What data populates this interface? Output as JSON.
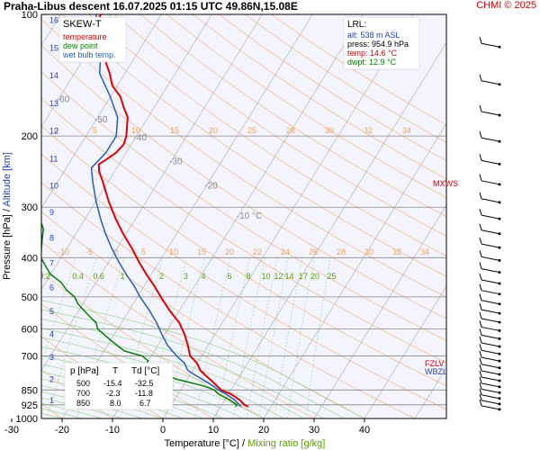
{
  "header": {
    "title": "Praha-Libus   descent   16.07.2025 01:15 UTC  49.86N,15.08E",
    "credit": "CHMI © 2025"
  },
  "legend": {
    "title": "SKEW-T",
    "items": [
      {
        "label": "temperature",
        "color": "#e00000"
      },
      {
        "label": "dew point",
        "color": "#008000"
      },
      {
        "label": "wet bulb temp.",
        "color": "#1f5fbf"
      }
    ]
  },
  "lrl": {
    "title": "LRL:",
    "alt": "alt: 538 m ASL",
    "press": "press: 954.9 hPa",
    "temp": "temp: 14.6 °C",
    "dwpt": "dwpt: 12.9 °C"
  },
  "levels_table": {
    "headers": [
      "p [hPa]",
      "T",
      "Td [°C]"
    ],
    "rows": [
      [
        "500",
        "-15.4",
        "-32.5"
      ],
      [
        "700",
        "-2.3",
        "-11.8"
      ],
      [
        "850",
        "8.0",
        "6.7"
      ]
    ]
  },
  "labels": {
    "mxws": "MXWS",
    "fzlv": "FZLV",
    "wbzl": "WBZL"
  },
  "chart_data": {
    "type": "line",
    "xlabel": "Temperature [°C]",
    "xlabel_sep": " / ",
    "xlabel2": "Mixing ratio [g/kg]",
    "ylabel": "Pressure [hPa]",
    "ylabel_sep": " / ",
    "ylabel2": "Altitude [km]",
    "xlim": [
      -38,
      50
    ],
    "ylim": [
      1000,
      100
    ],
    "x_ticks": [
      -30,
      -20,
      -10,
      0,
      10,
      20,
      30,
      40
    ],
    "pressure_ticks": [
      100,
      200,
      300,
      400,
      500,
      600,
      700,
      850,
      925,
      1000
    ],
    "altitude_ticks": [
      1,
      2,
      3,
      4,
      5,
      6,
      7,
      8,
      9,
      10,
      11,
      12,
      13,
      14,
      15,
      16
    ],
    "isotherm_labels": [
      {
        "t": -80,
        "p": 110,
        "text": "-80 °C"
      },
      {
        "t": -70,
        "p": 140,
        "text": "-70"
      },
      {
        "t": -60,
        "p": 165,
        "text": "-60"
      },
      {
        "t": -50,
        "p": 185,
        "text": "-50"
      },
      {
        "t": -40,
        "p": 205,
        "text": "-40"
      },
      {
        "t": -30,
        "p": 235,
        "text": "-30"
      },
      {
        "t": -20,
        "p": 270,
        "text": "-20"
      },
      {
        "t": -10,
        "p": 320,
        "text": "-10 °C"
      }
    ],
    "mixing_ratio_labels": [
      "0.2",
      "0.4",
      "0.6",
      "1",
      "2",
      "3",
      "4",
      "6",
      "8",
      "10",
      "12",
      "14",
      "17",
      "20",
      "25"
    ],
    "upper_labels_row1": [
      "0",
      "5",
      "10",
      "15",
      "20",
      "25",
      "28",
      "30",
      "32",
      "34"
    ],
    "upper_labels_row2": [
      "-10",
      "-5",
      "0",
      "5",
      "10",
      "15",
      "20",
      "22",
      "24",
      "26",
      "28",
      "30",
      "32",
      "34"
    ],
    "series": [
      {
        "name": "temperature",
        "color": "#e00000",
        "points": [
          [
            935,
            15.5
          ],
          [
            925,
            14.5
          ],
          [
            900,
            13
          ],
          [
            870,
            10.5
          ],
          [
            850,
            8
          ],
          [
            820,
            6
          ],
          [
            800,
            4.5
          ],
          [
            780,
            3
          ],
          [
            760,
            1.5
          ],
          [
            730,
            0
          ],
          [
            700,
            -2.3
          ],
          [
            660,
            -4
          ],
          [
            620,
            -6
          ],
          [
            580,
            -8.5
          ],
          [
            540,
            -12
          ],
          [
            500,
            -15.4
          ],
          [
            470,
            -18
          ],
          [
            440,
            -21
          ],
          [
            410,
            -24
          ],
          [
            380,
            -27
          ],
          [
            350,
            -30.5
          ],
          [
            320,
            -34
          ],
          [
            290,
            -37.5
          ],
          [
            260,
            -41
          ],
          [
            245,
            -43
          ],
          [
            235,
            -44
          ],
          [
            228,
            -43
          ],
          [
            220,
            -42
          ],
          [
            210,
            -41.5
          ],
          [
            200,
            -42
          ],
          [
            190,
            -43
          ],
          [
            180,
            -44
          ],
          [
            170,
            -46
          ],
          [
            160,
            -48
          ],
          [
            150,
            -51
          ],
          [
            140,
            -53
          ],
          [
            130,
            -55.5
          ],
          [
            120,
            -58
          ],
          [
            110,
            -60
          ],
          [
            105,
            -62
          ],
          [
            100,
            -62
          ]
        ]
      },
      {
        "name": "dew point",
        "color": "#008000",
        "points": [
          [
            935,
            13
          ],
          [
            925,
            13
          ],
          [
            900,
            11
          ],
          [
            870,
            8
          ],
          [
            850,
            6.7
          ],
          [
            830,
            4
          ],
          [
            800,
            -2
          ],
          [
            780,
            -5
          ],
          [
            760,
            -10
          ],
          [
            730,
            -10
          ],
          [
            720,
            -10
          ],
          [
            700,
            -11.8
          ],
          [
            690,
            -14
          ],
          [
            680,
            -16
          ],
          [
            670,
            -17
          ],
          [
            660,
            -18
          ],
          [
            640,
            -20
          ],
          [
            620,
            -22
          ],
          [
            600,
            -24
          ],
          [
            580,
            -25
          ],
          [
            560,
            -27
          ],
          [
            540,
            -29
          ],
          [
            520,
            -31
          ],
          [
            500,
            -32.5
          ],
          [
            480,
            -35
          ],
          [
            460,
            -37
          ],
          [
            440,
            -40
          ],
          [
            420,
            -42
          ],
          [
            400,
            -44
          ],
          [
            380,
            -45
          ],
          [
            360,
            -46
          ],
          [
            340,
            -47
          ],
          [
            320,
            -49
          ],
          [
            300,
            -51
          ],
          [
            280,
            -54
          ],
          [
            260,
            -57
          ],
          [
            240,
            -60
          ],
          [
            220,
            -64
          ],
          [
            200,
            -68
          ],
          [
            180,
            -72
          ],
          [
            160,
            -76
          ],
          [
            140,
            -80
          ],
          [
            120,
            -84
          ],
          [
            100,
            -85
          ]
        ]
      },
      {
        "name": "wet bulb temp.",
        "color": "#1f5fbf",
        "points": [
          [
            935,
            14
          ],
          [
            925,
            13.5
          ],
          [
            900,
            12
          ],
          [
            870,
            9.5
          ],
          [
            850,
            7.5
          ],
          [
            820,
            5
          ],
          [
            800,
            3
          ],
          [
            780,
            1
          ],
          [
            760,
            -1
          ],
          [
            730,
            -2.5
          ],
          [
            700,
            -5
          ],
          [
            660,
            -8
          ],
          [
            620,
            -10.5
          ],
          [
            580,
            -13
          ],
          [
            540,
            -16
          ],
          [
            500,
            -19.5
          ],
          [
            470,
            -22
          ],
          [
            440,
            -25
          ],
          [
            410,
            -28
          ],
          [
            380,
            -31
          ],
          [
            350,
            -34
          ],
          [
            320,
            -37
          ],
          [
            290,
            -40
          ],
          [
            260,
            -43
          ],
          [
            240,
            -45
          ],
          [
            220,
            -44
          ],
          [
            200,
            -44
          ],
          [
            180,
            -46
          ],
          [
            160,
            -50
          ],
          [
            140,
            -55
          ],
          [
            120,
            -58
          ],
          [
            100,
            -63
          ]
        ]
      }
    ]
  }
}
